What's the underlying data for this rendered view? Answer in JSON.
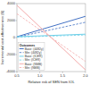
{
  "chart_data": {
    "type": "line",
    "xlabel": "Relative risk of SEN from IOL",
    "ylabel": "Incremental cost-effectiveness ($)",
    "x": [
      0.5,
      2.0
    ],
    "xlim": [
      0.5,
      2.0
    ],
    "xticks": [
      0.5,
      {
        "value": 1.0,
        "label": "1.0"
      },
      1.5,
      {
        "value": 2.0,
        "label": "2.0"
      }
    ],
    "ylim": [
      -4000,
      4000
    ],
    "yticks": [
      -4000,
      -2000,
      0,
      2000,
      4000
    ],
    "legend": "lower left",
    "legend_title": "Outcomes",
    "series": [
      {
        "name": "Base: (4482y)",
        "color": "#4472C4",
        "line_style": "solid",
        "values": [
          100,
          2500
        ]
      },
      {
        "name": "Min: (4482y)",
        "color": "#4472C4",
        "line_style": "dashed",
        "values": [
          50,
          1800
        ]
      },
      {
        "name": "Base: (ICER)",
        "color": "#70D0E8",
        "line_style": "solid",
        "values": [
          100,
          400
        ]
      },
      {
        "name": "Min: (ICER)",
        "color": "#70D0E8",
        "line_style": "dashed",
        "values": [
          50,
          300
        ]
      },
      {
        "name": "Base: (NMB)",
        "color": "#F4AAAA",
        "line_style": "solid",
        "values": [
          3800,
          -3800
        ]
      },
      {
        "name": "Min: (NMB)",
        "color": "#F4AAAA",
        "line_style": "dashed",
        "values": [
          2800,
          -2800
        ]
      }
    ]
  }
}
